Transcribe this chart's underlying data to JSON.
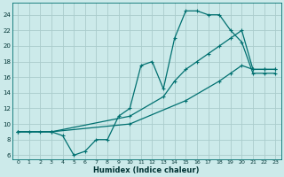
{
  "xlabel": "Humidex (Indice chaleur)",
  "background_color": "#cceaea",
  "grid_color": "#aacccc",
  "line_color": "#007070",
  "xlim": [
    -0.5,
    23.5
  ],
  "ylim": [
    5.5,
    25.5
  ],
  "yticks": [
    6,
    8,
    10,
    12,
    14,
    16,
    18,
    20,
    22,
    24
  ],
  "xticks": [
    0,
    1,
    2,
    3,
    4,
    5,
    6,
    7,
    8,
    9,
    10,
    11,
    12,
    13,
    14,
    15,
    16,
    17,
    18,
    19,
    20,
    21,
    22,
    23
  ],
  "line1_x": [
    0,
    1,
    2,
    3,
    4,
    5,
    6,
    7,
    8,
    9,
    10,
    11,
    12,
    13,
    14,
    15,
    16,
    17,
    18,
    19,
    20,
    21,
    22,
    23
  ],
  "line1_y": [
    9,
    9,
    9,
    9,
    8.5,
    6,
    6.5,
    8,
    8,
    11,
    12,
    17.5,
    18,
    14.5,
    21,
    24.5,
    24.5,
    24,
    24,
    22,
    20.5,
    16.5,
    16.5,
    16.5
  ],
  "line2_x": [
    0,
    3,
    10,
    13,
    14,
    15,
    16,
    17,
    18,
    19,
    20,
    21,
    22,
    23
  ],
  "line2_y": [
    9,
    9,
    11,
    13.5,
    15.5,
    17,
    18,
    19,
    20,
    21,
    22,
    17,
    17,
    17
  ],
  "line3_x": [
    0,
    3,
    10,
    15,
    18,
    19,
    20,
    21,
    22,
    23
  ],
  "line3_y": [
    9,
    9,
    10,
    13,
    15.5,
    16.5,
    17.5,
    17,
    17,
    17
  ]
}
